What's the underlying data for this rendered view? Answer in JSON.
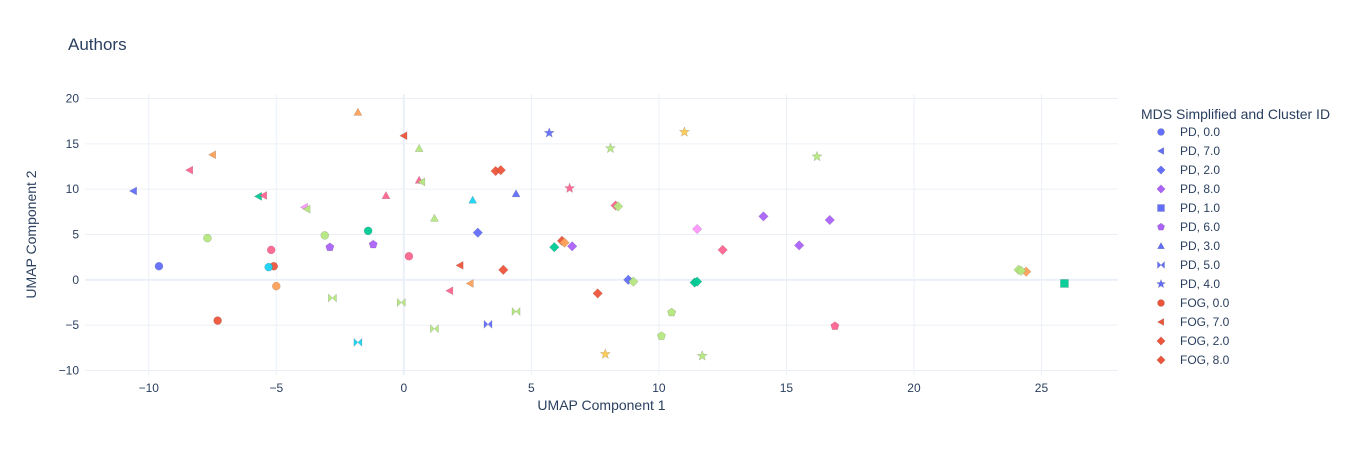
{
  "chart_data": {
    "type": "scatter",
    "title": "Authors",
    "xlabel": "UMAP Component 1",
    "ylabel": "UMAP Component 2",
    "xlim": [
      -12.5,
      28
    ],
    "ylim": [
      -10.5,
      20.5
    ],
    "x_ticks": [
      -10,
      -5,
      0,
      5,
      10,
      15,
      20,
      25
    ],
    "y_ticks": [
      -10,
      -5,
      0,
      5,
      10,
      15,
      20
    ],
    "grid": true,
    "legend": {
      "title": "MDS Simplified and Cluster ID",
      "placement": "right"
    },
    "series": [
      {
        "name": "PD, 0.0",
        "symbol": "circle",
        "color": "#636efa",
        "points": [
          [
            -9.6,
            1.5
          ]
        ]
      },
      {
        "name": "PD, 7.0",
        "symbol": "triangle-left",
        "color": "#636efa",
        "points": [
          [
            -10.6,
            9.8
          ]
        ]
      },
      {
        "name": "PD, 2.0",
        "symbol": "diamond",
        "color": "#636efa",
        "points": [
          [
            2.9,
            5.2
          ],
          [
            8.8,
            0.0
          ]
        ]
      },
      {
        "name": "PD, 8.0",
        "symbol": "diamond",
        "color": "#ab63fa",
        "points": [
          [
            6.6,
            3.7
          ],
          [
            14.1,
            7.0
          ],
          [
            15.5,
            3.8
          ],
          [
            16.7,
            6.6
          ]
        ]
      },
      {
        "name": "PD, 1.0",
        "symbol": "square",
        "color": "#636efa",
        "points": []
      },
      {
        "name": "PD, 6.0",
        "symbol": "pentagon",
        "color": "#ab63fa",
        "points": [
          [
            -2.9,
            3.6
          ],
          [
            -1.2,
            3.9
          ]
        ]
      },
      {
        "name": "PD, 3.0",
        "symbol": "triangle-up",
        "color": "#636efa",
        "points": [
          [
            4.4,
            9.5
          ]
        ]
      },
      {
        "name": "PD, 5.0",
        "symbol": "bowtie",
        "color": "#636efa",
        "points": [
          [
            3.3,
            -4.9
          ]
        ]
      },
      {
        "name": "PD, 4.0",
        "symbol": "star",
        "color": "#636efa",
        "points": [
          [
            5.7,
            16.2
          ]
        ]
      },
      {
        "name": "FOG, 0.0",
        "symbol": "circle",
        "color": "#ef553b",
        "points": [
          [
            -7.3,
            -4.5
          ],
          [
            -5.1,
            1.5
          ]
        ]
      },
      {
        "name": "FOG, 7.0",
        "symbol": "triangle-left",
        "color": "#ef553b",
        "points": [
          [
            2.2,
            1.6
          ]
        ]
      },
      {
        "name": "FOG, 2.0",
        "symbol": "diamond",
        "color": "#ef553b",
        "points": [
          [
            7.6,
            -1.5
          ],
          [
            3.9,
            1.1
          ]
        ]
      },
      {
        "name": "FOG, 8.0",
        "symbol": "diamond",
        "color": "#ef553b",
        "points": [
          [
            6.2,
            4.3
          ]
        ]
      },
      {
        "name": "",
        "symbol": "circle",
        "color": "#00cc96",
        "points": [
          [
            -1.4,
            5.4
          ]
        ]
      },
      {
        "name": "",
        "symbol": "diamond",
        "color": "#00cc96",
        "points": [
          [
            5.9,
            3.6
          ],
          [
            11.4,
            -0.3
          ],
          [
            11.5,
            -0.2
          ]
        ]
      },
      {
        "name": "",
        "symbol": "square",
        "color": "#00cc96",
        "points": [
          [
            25.9,
            -0.4
          ]
        ]
      },
      {
        "name": "",
        "symbol": "triangle-left",
        "color": "#00cc96",
        "points": [
          [
            -5.7,
            9.2
          ]
        ]
      },
      {
        "name": "",
        "symbol": "circle",
        "color": "#19d3f3",
        "points": [
          [
            -5.3,
            1.4
          ]
        ]
      },
      {
        "name": "",
        "symbol": "triangle-up",
        "color": "#19d3f3",
        "points": [
          [
            2.7,
            8.8
          ]
        ]
      },
      {
        "name": "",
        "symbol": "bowtie",
        "color": "#19d3f3",
        "points": [
          [
            -1.8,
            -6.9
          ]
        ]
      },
      {
        "name": "",
        "symbol": "circle",
        "color": "#ff6692",
        "points": [
          [
            -5.2,
            3.3
          ],
          [
            0.2,
            2.6
          ]
        ]
      },
      {
        "name": "",
        "symbol": "pentagon",
        "color": "#ff6692",
        "points": [
          [
            16.9,
            -5.1
          ]
        ]
      },
      {
        "name": "",
        "symbol": "triangle-left",
        "color": "#ff6692",
        "points": [
          [
            -8.4,
            12.1
          ],
          [
            -5.5,
            9.3
          ],
          [
            1.8,
            -1.2
          ]
        ]
      },
      {
        "name": "",
        "symbol": "triangle-up",
        "color": "#ff6692",
        "points": [
          [
            -0.7,
            9.3
          ],
          [
            0.6,
            11.0
          ]
        ]
      },
      {
        "name": "",
        "symbol": "star",
        "color": "#ff6692",
        "points": [
          [
            6.5,
            10.1
          ]
        ]
      },
      {
        "name": "",
        "symbol": "diamond",
        "color": "#ff6692",
        "points": [
          [
            12.5,
            3.3
          ],
          [
            8.3,
            8.2
          ]
        ]
      },
      {
        "name": "",
        "symbol": "diamond",
        "color": "#ff97ff",
        "points": [
          [
            11.5,
            5.6
          ]
        ]
      },
      {
        "name": "",
        "symbol": "triangle-left",
        "color": "#ff97ff",
        "points": [
          [
            -3.9,
            8.0
          ]
        ]
      },
      {
        "name": "",
        "symbol": "circle",
        "color": "#ffa15a",
        "points": [
          [
            -5.0,
            -0.7
          ]
        ]
      },
      {
        "name": "",
        "symbol": "triangle-up",
        "color": "#ffa15a",
        "points": [
          [
            -1.8,
            18.5
          ]
        ]
      },
      {
        "name": "",
        "symbol": "triangle-left",
        "color": "#ffa15a",
        "points": [
          [
            -7.5,
            13.8
          ],
          [
            2.6,
            -0.4
          ]
        ]
      },
      {
        "name": "",
        "symbol": "diamond",
        "color": "#ffa15a",
        "points": [
          [
            6.3,
            4.1
          ],
          [
            24.4,
            0.9
          ]
        ]
      },
      {
        "name": "",
        "symbol": "circle",
        "color": "#b6e880",
        "points": [
          [
            -7.7,
            4.6
          ],
          [
            -3.1,
            4.9
          ]
        ]
      },
      {
        "name": "",
        "symbol": "bowtie",
        "color": "#b6e880",
        "points": [
          [
            -2.8,
            -2.0
          ],
          [
            -0.1,
            -2.5
          ],
          [
            1.2,
            -5.4
          ],
          [
            4.4,
            -3.5
          ]
        ]
      },
      {
        "name": "",
        "symbol": "triangle-left",
        "color": "#b6e880",
        "points": [
          [
            -3.8,
            7.8
          ],
          [
            0.7,
            10.8
          ]
        ]
      },
      {
        "name": "",
        "symbol": "triangle-up",
        "color": "#b6e880",
        "points": [
          [
            0.6,
            14.5
          ],
          [
            1.2,
            6.8
          ]
        ]
      },
      {
        "name": "",
        "symbol": "star",
        "color": "#b6e880",
        "points": [
          [
            8.1,
            14.5
          ],
          [
            16.2,
            13.6
          ],
          [
            11.7,
            -8.4
          ]
        ]
      },
      {
        "name": "",
        "symbol": "pentagon",
        "color": "#b6e880",
        "points": [
          [
            10.1,
            -6.2
          ],
          [
            10.5,
            -3.6
          ]
        ]
      },
      {
        "name": "",
        "symbol": "diamond",
        "color": "#b6e880",
        "points": [
          [
            8.4,
            8.1
          ],
          [
            9.0,
            -0.2
          ],
          [
            24.1,
            1.1
          ],
          [
            24.2,
            1.0
          ]
        ]
      },
      {
        "name": "",
        "symbol": "star",
        "color": "#fecb52",
        "points": [
          [
            11.0,
            16.3
          ],
          [
            7.9,
            -8.2
          ]
        ]
      },
      {
        "name": "",
        "symbol": "triangle-left",
        "color": "#ef553b",
        "points": [
          [
            0.0,
            15.9
          ]
        ]
      },
      {
        "name": "",
        "symbol": "diamond",
        "color": "#ef553b",
        "points": [
          [
            3.6,
            12.0
          ],
          [
            3.8,
            12.1
          ]
        ]
      }
    ]
  }
}
